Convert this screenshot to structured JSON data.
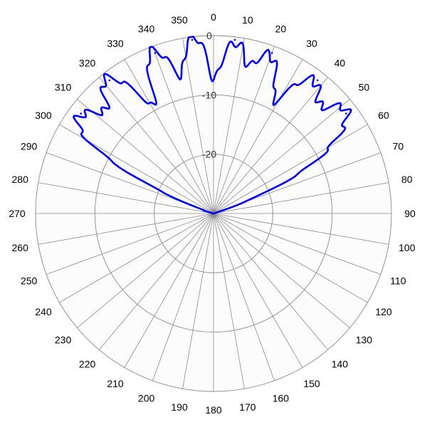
{
  "chart_data": {
    "type": "polar-line",
    "angle_unit": "degrees",
    "angle_direction": "clockwise",
    "zero_direction": "top",
    "angle_ticks": [
      "0",
      "10",
      "20",
      "30",
      "40",
      "50",
      "60",
      "70",
      "80",
      "90",
      "100",
      "110",
      "120",
      "130",
      "140",
      "150",
      "160",
      "170",
      "180",
      "190",
      "200",
      "210",
      "220",
      "230",
      "240",
      "250",
      "260",
      "270",
      "280",
      "290",
      "300",
      "310",
      "320",
      "330",
      "340",
      "350"
    ],
    "radial_range": [
      -30,
      0
    ],
    "radial_ticks": [
      {
        "value": 0,
        "label": "0"
      },
      {
        "value": -10,
        "label": "-10"
      },
      {
        "value": -20,
        "label": "-20"
      }
    ],
    "grid": true,
    "series": [
      {
        "color": "#0000ee",
        "lobes": [
          {
            "angle": -53,
            "peak": -2.0,
            "width": 9
          },
          {
            "angle": -38,
            "peak": -1.5,
            "width": 8
          },
          {
            "angle": -20,
            "peak": -1.2,
            "width": 7
          },
          {
            "angle": -7,
            "peak": -0.5,
            "width": 6
          },
          {
            "angle": 7,
            "peak": -0.5,
            "width": 6
          },
          {
            "angle": 20,
            "peak": -1.2,
            "width": 7
          },
          {
            "angle": 38,
            "peak": -1.5,
            "width": 8
          },
          {
            "angle": 53,
            "peak": -2.0,
            "width": 9
          }
        ],
        "floor_db": -30
      }
    ]
  }
}
